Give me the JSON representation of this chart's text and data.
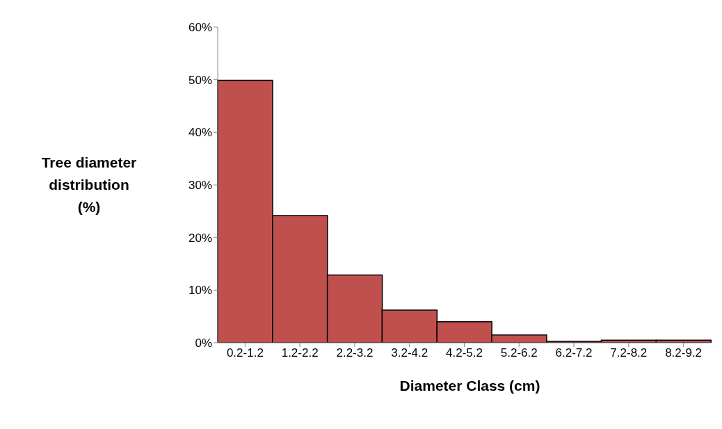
{
  "chart_data": {
    "type": "bar",
    "xlabel": "Diameter Class (cm)",
    "ylabel": "Tree diameter distribution (%)",
    "categories": [
      "0.2-1.2",
      "1.2-2.2",
      "2.2-3.2",
      "3.2-4.2",
      "4.2-5.2",
      "5.2-6.2",
      "6.2-7.2",
      "7.2-8.2",
      "8.2-9.2"
    ],
    "values": [
      49.9,
      24.2,
      12.9,
      6.2,
      4.0,
      1.5,
      0.3,
      0.5,
      0.5
    ],
    "color": "#c0504d",
    "ylim": [
      0,
      60
    ],
    "yticks": [
      {
        "value": 0,
        "label": "0%"
      },
      {
        "value": 10,
        "label": "10%"
      },
      {
        "value": 20,
        "label": "20%"
      },
      {
        "value": 30,
        "label": "30%"
      },
      {
        "value": 40,
        "label": "40%"
      },
      {
        "value": 50,
        "label": "50%"
      },
      {
        "value": 60,
        "label": "60%"
      }
    ],
    "grid": false,
    "legend": false
  }
}
